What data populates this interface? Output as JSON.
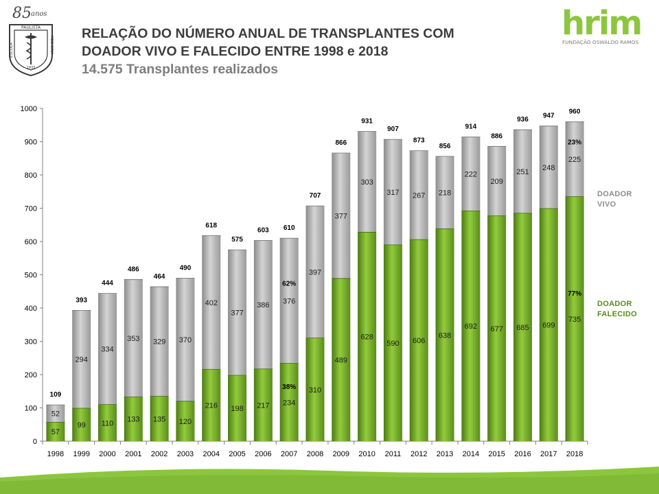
{
  "header": {
    "title_line1": "RELAÇÃO DO NÚMERO ANUAL DE TRANSPLANTES COM",
    "title_line2": "DOADOR VIVO E FALECIDO ENTRE 1998 e 2018",
    "subtitle": "14.575 Transplantes realizados"
  },
  "logos": {
    "left": {
      "anniversary": "85",
      "anniversary_suffix": "anos",
      "ring_text_top": "PAULISTA",
      "ring_text_right": "MEDICINA",
      "ring_text_left": "ESCOLA",
      "year": "1933"
    },
    "right": {
      "brand": "hrim",
      "tagline": "FUNDAÇÃO OSWALDO RAMOS"
    }
  },
  "legend": {
    "vivo_line1": "DOADOR",
    "vivo_line2": "VIVO",
    "falecido_line1": "DOADOR",
    "falecido_line2": "FALECIDO"
  },
  "colors": {
    "falecido_dark": "#4d7a14",
    "falecido_light": "#92cc3c",
    "vivo_dark": "#8c8c8c",
    "vivo_light": "#d2d2d2",
    "legend_vivo": "#8c8c8c",
    "legend_falecido": "#5a8a1e",
    "wave": "#8cc63f"
  },
  "chart_data": {
    "type": "bar",
    "stacked": true,
    "categories": [
      "1998",
      "1999",
      "2000",
      "2001",
      "2002",
      "2003",
      "2004",
      "2005",
      "2006",
      "2007",
      "2008",
      "2009",
      "2010",
      "2011",
      "2012",
      "2013",
      "2014",
      "2015",
      "2016",
      "2017",
      "2018"
    ],
    "series": [
      {
        "name": "DOADOR FALECIDO",
        "values": [
          57,
          99,
          110,
          133,
          135,
          120,
          216,
          198,
          217,
          234,
          310,
          489,
          628,
          590,
          606,
          638,
          692,
          677,
          685,
          699,
          735
        ]
      },
      {
        "name": "DOADOR VIVO",
        "values": [
          52,
          294,
          334,
          353,
          329,
          370,
          402,
          377,
          386,
          376,
          397,
          377,
          303,
          317,
          267,
          218,
          222,
          209,
          251,
          248,
          225
        ]
      }
    ],
    "totals": [
      109,
      393,
      444,
      486,
      464,
      490,
      618,
      575,
      603,
      610,
      707,
      866,
      931,
      907,
      873,
      856,
      914,
      886,
      936,
      947,
      960
    ],
    "yticks": [
      0,
      100,
      200,
      300,
      400,
      500,
      600,
      700,
      800,
      900,
      1000
    ],
    "ylim": [
      0,
      1000
    ],
    "annotations": [
      {
        "category": "2007",
        "text": "62%",
        "near_value": 475
      },
      {
        "category": "2007",
        "text": "38%",
        "near_value": 165
      },
      {
        "category": "2018",
        "text": "23%",
        "near_value": 900
      },
      {
        "category": "2018",
        "text": "77%",
        "near_value": 445
      }
    ],
    "legend": "right"
  }
}
